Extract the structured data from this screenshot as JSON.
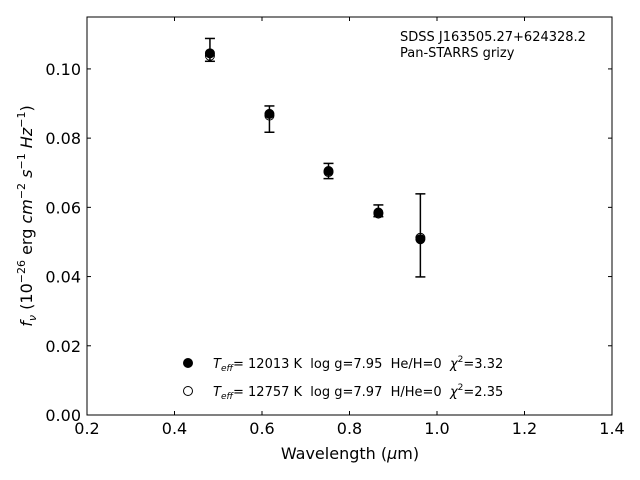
{
  "chart_data": {
    "type": "scatter",
    "title": "",
    "xlabel": "Wavelength (μm)",
    "ylabel": "f_ν (10^-26 erg cm^-2 s^-1 Hz^-1)",
    "xlim": [
      0.2,
      1.4
    ],
    "ylim": [
      0.0,
      0.115
    ],
    "x_ticks": [
      0.2,
      0.4,
      0.6,
      0.8,
      1.0,
      1.2,
      1.4
    ],
    "x_tick_labels": [
      "0.2",
      "0.4",
      "0.6",
      "0.8",
      "1.0",
      "1.2",
      "1.4"
    ],
    "y_ticks": [
      0.0,
      0.02,
      0.04,
      0.06,
      0.08,
      0.1
    ],
    "y_tick_labels": [
      "0.00",
      "0.02",
      "0.04",
      "0.06",
      "0.08",
      "0.10"
    ],
    "grid": false,
    "annotation": {
      "line1": "SDSS J163505.27+624328.2",
      "line2": "Pan-STARRS grizy"
    },
    "observed": {
      "x": [
        0.481,
        0.617,
        0.752,
        0.866,
        0.962
      ],
      "y": [
        0.1055,
        0.0855,
        0.0705,
        0.059,
        0.0519
      ],
      "yerr": [
        0.0033,
        0.0038,
        0.0022,
        0.0017,
        0.012
      ]
    },
    "series": [
      {
        "marker": "filled-circle",
        "x": [
          0.481,
          0.617,
          0.752,
          0.866,
          0.962
        ],
        "y": [
          0.1045,
          0.087,
          0.0705,
          0.0585,
          0.0508
        ],
        "legend_parts": {
          "sym": "T",
          "sub": "eff",
          "rest": "= 12013 K  log g=7.95  He/H=0  ",
          "chi": "χ",
          "sup": "2",
          "chival": "=3.32"
        }
      },
      {
        "marker": "open-circle",
        "x": [
          0.481,
          0.617,
          0.752,
          0.866,
          0.962
        ],
        "y": [
          0.1038,
          0.0865,
          0.0702,
          0.0582,
          0.0512
        ],
        "legend_parts": {
          "sym": "T",
          "sub": "eff",
          "rest": "= 12757 K  log g=7.97  H/He=0  ",
          "chi": "χ",
          "sup": "2",
          "chival": "=2.35"
        }
      }
    ]
  }
}
